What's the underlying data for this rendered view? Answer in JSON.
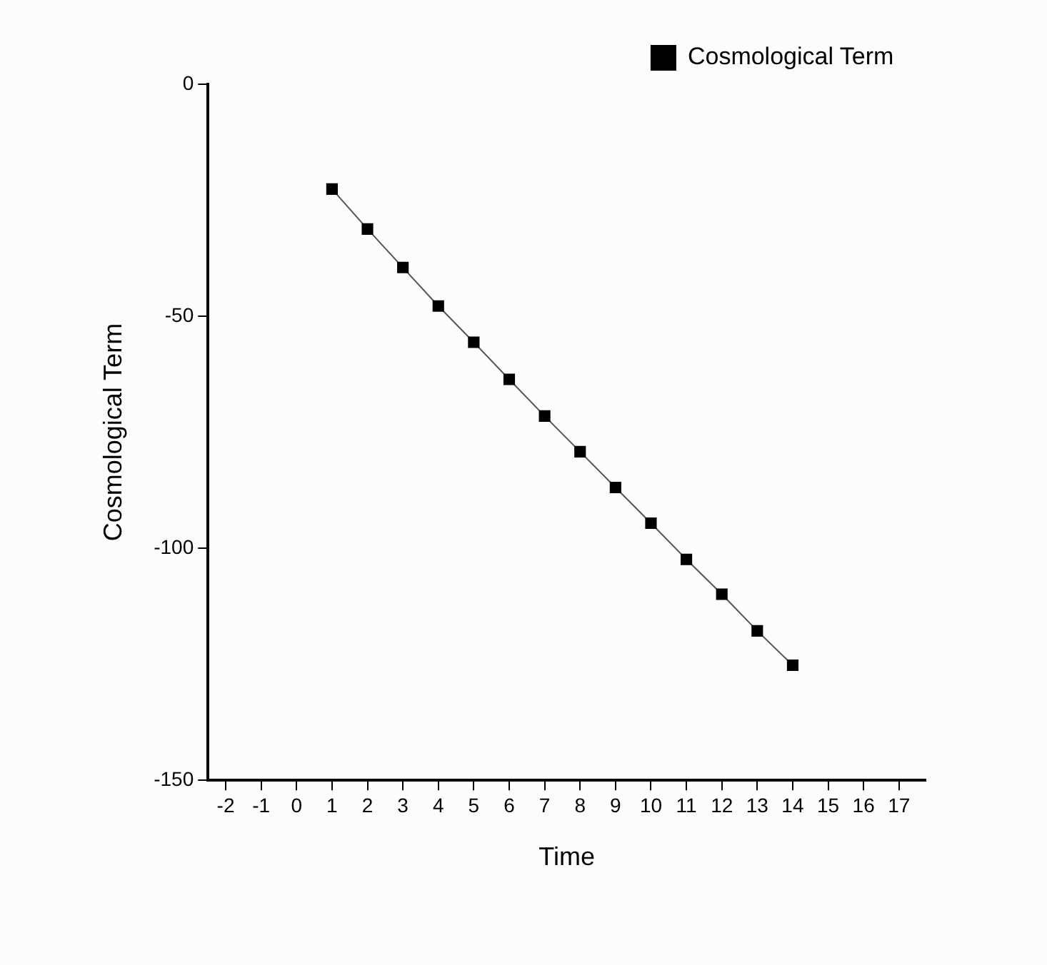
{
  "chart_data": {
    "type": "line",
    "xlabel": "Time",
    "ylabel": "Cosmological Term",
    "x": [
      1,
      2,
      3,
      4,
      5,
      6,
      7,
      8,
      9,
      10,
      11,
      12,
      13,
      14
    ],
    "series": [
      {
        "name": "Cosmological Term",
        "color": "#000000",
        "values": [
          -22.6,
          -31.2,
          -39.5,
          -47.8,
          -55.6,
          -63.6,
          -71.5,
          -79.2,
          -86.9,
          -94.6,
          -102.4,
          -109.9,
          -117.8,
          -125.2
        ]
      }
    ],
    "xlim": [
      -2.5,
      17.75
    ],
    "xticks": [
      -2,
      -1,
      0,
      1,
      2,
      3,
      4,
      5,
      6,
      7,
      8,
      9,
      10,
      11,
      12,
      13,
      14,
      15,
      16,
      17
    ],
    "ylim": [
      -150,
      0
    ],
    "yticks": [
      -150,
      -100,
      -50,
      0
    ],
    "grid": false,
    "legend": "top right",
    "marker": "square",
    "line_style": "solid"
  }
}
